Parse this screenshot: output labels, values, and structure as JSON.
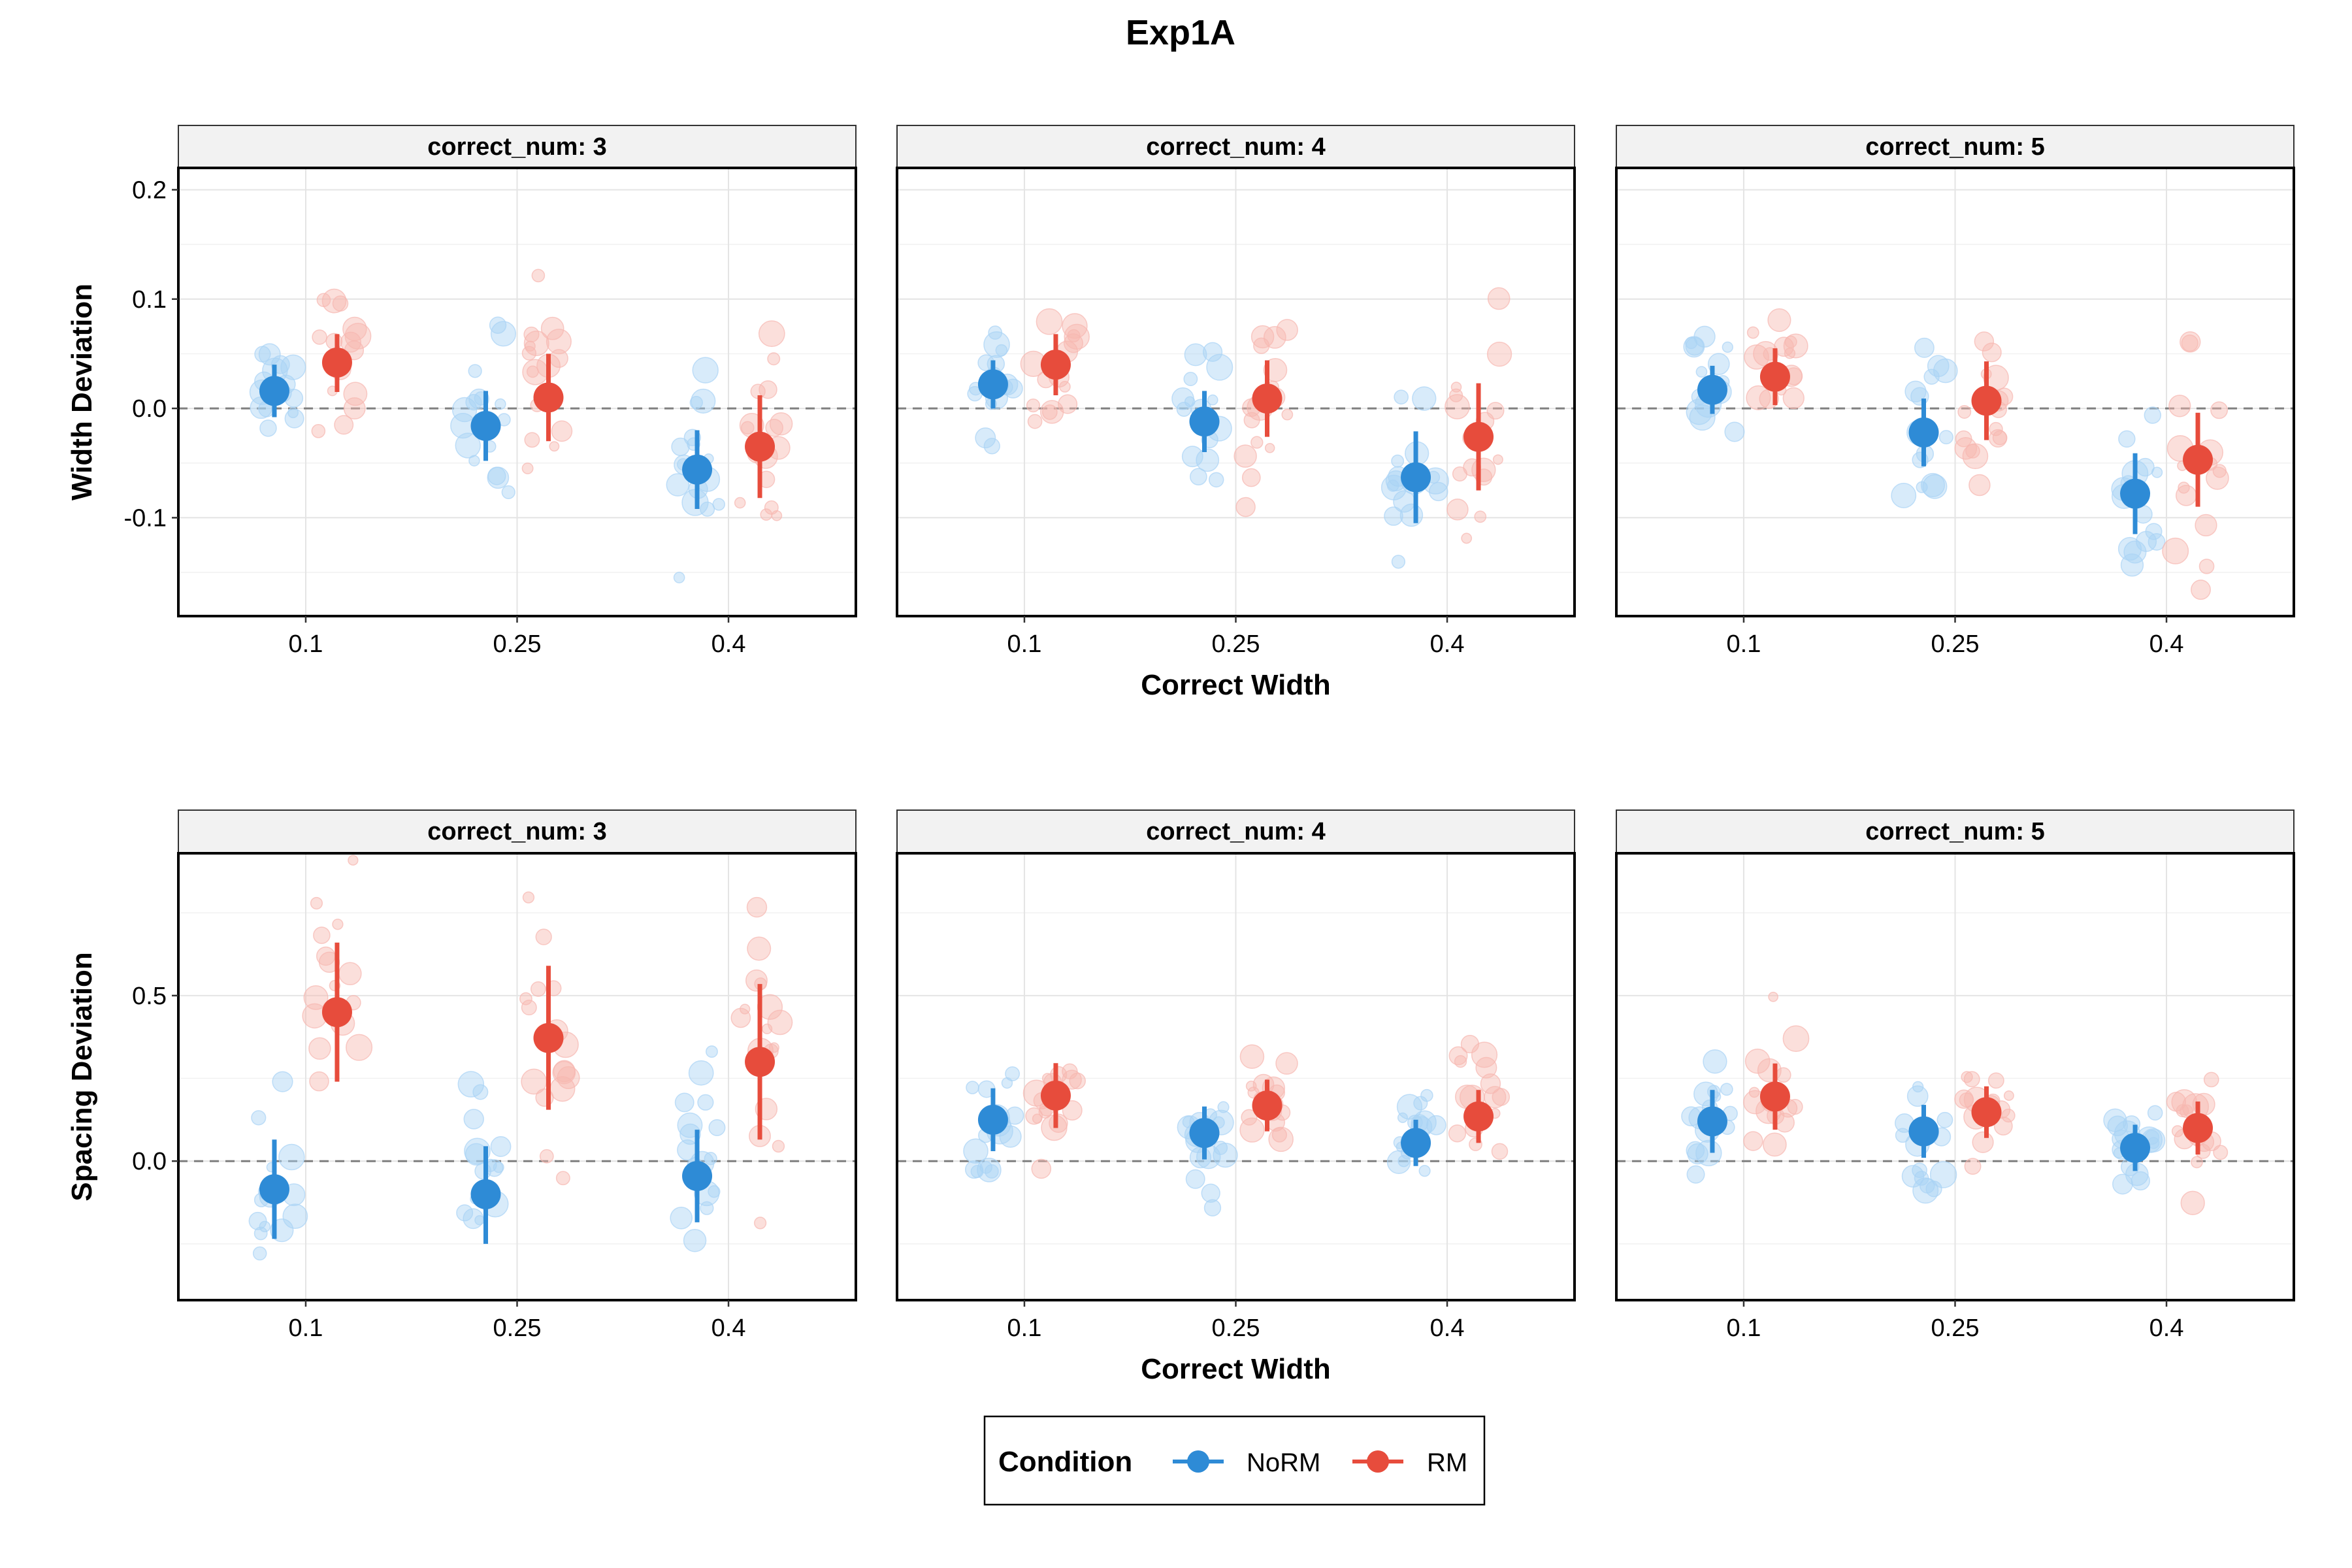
{
  "title": "Exp1A",
  "colors": {
    "NoRM": "#2E8BD6",
    "RM": "#E74C3C",
    "NoRM_light": "#A9D3F5",
    "RM_light": "#F6B7B0"
  },
  "legend": {
    "title": "Condition",
    "items": [
      "NoRM",
      "RM"
    ]
  },
  "chart_data": [
    {
      "type": "scatter",
      "row": "top",
      "ylabel": "Width Deviation",
      "xlabel": "Correct Width",
      "x_categories": [
        "0.1",
        "0.25",
        "0.4"
      ],
      "ylim": [
        -0.19,
        0.22
      ],
      "yticks": [
        -0.1,
        0.0,
        0.1,
        0.2
      ],
      "ytick_labels": [
        "-0.1",
        "0.0",
        "0.1",
        "0.2"
      ],
      "reference_line": 0,
      "panels": [
        {
          "strip": "correct_num: 3",
          "series": [
            {
              "name": "NoRM",
              "means": [
                0.016,
                -0.016,
                -0.056
              ],
              "lower": [
                -0.008,
                -0.048,
                -0.092
              ],
              "upper": [
                0.04,
                0.016,
                -0.02
              ]
            },
            {
              "name": "RM",
              "means": [
                0.042,
                0.01,
                -0.035
              ],
              "lower": [
                0.015,
                -0.03,
                -0.082
              ],
              "upper": [
                0.068,
                0.05,
                0.012
              ]
            }
          ]
        },
        {
          "strip": "correct_num: 4",
          "series": [
            {
              "name": "NoRM",
              "means": [
                0.022,
                -0.012,
                -0.063
              ],
              "lower": [
                0.0,
                -0.04,
                -0.105
              ],
              "upper": [
                0.044,
                0.016,
                -0.021
              ]
            },
            {
              "name": "RM",
              "means": [
                0.04,
                0.009,
                -0.026
              ],
              "lower": [
                0.012,
                -0.026,
                -0.075
              ],
              "upper": [
                0.068,
                0.044,
                0.023
              ]
            }
          ]
        },
        {
          "strip": "correct_num: 5",
          "series": [
            {
              "name": "NoRM",
              "means": [
                0.017,
                -0.022,
                -0.078
              ],
              "lower": [
                -0.005,
                -0.053,
                -0.115
              ],
              "upper": [
                0.039,
                0.009,
                -0.041
              ]
            },
            {
              "name": "RM",
              "means": [
                0.029,
                0.007,
                -0.047
              ],
              "lower": [
                0.003,
                -0.029,
                -0.09
              ],
              "upper": [
                0.055,
                0.043,
                -0.004
              ]
            }
          ]
        }
      ]
    },
    {
      "type": "scatter",
      "row": "bottom",
      "ylabel": "Spacing Deviation",
      "xlabel": "Correct Width",
      "x_categories": [
        "0.1",
        "0.25",
        "0.4"
      ],
      "ylim": [
        -0.42,
        0.93
      ],
      "yticks": [
        0.0,
        0.5
      ],
      "ytick_labels": [
        "0.0",
        "0.5"
      ],
      "reference_line": 0,
      "panels": [
        {
          "strip": "correct_num: 3",
          "series": [
            {
              "name": "NoRM",
              "means": [
                -0.085,
                -0.1,
                -0.045
              ],
              "lower": [
                -0.235,
                -0.25,
                -0.185
              ],
              "upper": [
                0.065,
                0.045,
                0.095
              ]
            },
            {
              "name": "RM",
              "means": [
                0.45,
                0.372,
                0.3
              ],
              "lower": [
                0.24,
                0.155,
                0.065
              ],
              "upper": [
                0.66,
                0.59,
                0.535
              ]
            }
          ]
        },
        {
          "strip": "correct_num: 4",
          "series": [
            {
              "name": "NoRM",
              "means": [
                0.125,
                0.085,
                0.055
              ],
              "lower": [
                0.03,
                0.005,
                -0.015
              ],
              "upper": [
                0.22,
                0.165,
                0.125
              ]
            },
            {
              "name": "RM",
              "means": [
                0.198,
                0.168,
                0.135
              ],
              "lower": [
                0.1,
                0.09,
                0.055
              ],
              "upper": [
                0.296,
                0.246,
                0.215
              ]
            }
          ]
        },
        {
          "strip": "correct_num: 5",
          "series": [
            {
              "name": "NoRM",
              "means": [
                0.12,
                0.09,
                0.04
              ],
              "lower": [
                0.025,
                0.01,
                -0.03
              ],
              "upper": [
                0.215,
                0.17,
                0.11
              ]
            },
            {
              "name": "RM",
              "means": [
                0.195,
                0.148,
                0.1
              ],
              "lower": [
                0.095,
                0.07,
                0.02
              ],
              "upper": [
                0.295,
                0.226,
                0.18
              ]
            }
          ]
        }
      ]
    }
  ]
}
